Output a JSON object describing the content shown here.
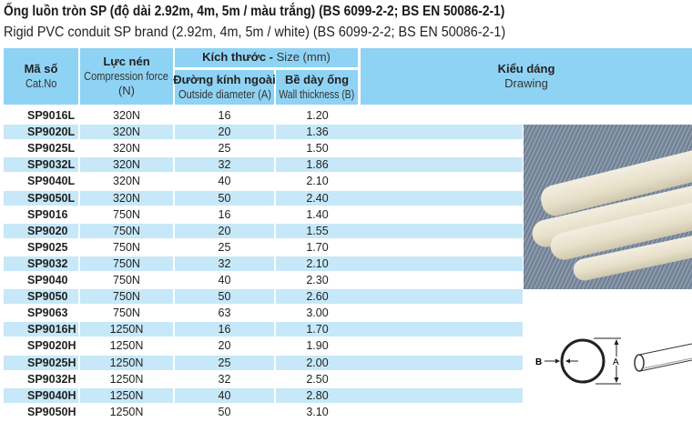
{
  "title_vi": "Ống luồn tròn SP (độ dài 2.92m, 4m, 5m / màu trắng) (BS 6099-2-2; BS EN 50086-2-1)",
  "title_en": "Rigid PVC conduit SP brand (2.92m, 4m, 5m / white) (BS 6099-2-2; BS EN 50086-2-1)",
  "headers": {
    "cat_vi": "Mã số",
    "cat_en": "Cat.No",
    "force_vi": "Lực nén",
    "force_en": "Compression force",
    "force_unit": "(N)",
    "size_vi": "Kích thước -",
    "size_en": "Size (mm)",
    "od_vi": "Đường kính ngoài",
    "od_en": "Outside diameter (A)",
    "wall_vi": "Bề dày ống",
    "wall_en": "Wall thickness (B)",
    "drawing_vi": "Kiểu dáng",
    "drawing_en": "Drawing"
  },
  "drawing_labels": {
    "b": "B",
    "a": "A"
  },
  "colors": {
    "header": "#8fd3f4",
    "stripe": "#c6e8f8"
  },
  "rows": [
    [
      "SP9016L",
      "320N",
      "16",
      "1.20"
    ],
    [
      "SP9020L",
      "320N",
      "20",
      "1.36"
    ],
    [
      "SP9025L",
      "320N",
      "25",
      "1.50"
    ],
    [
      "SP9032L",
      "320N",
      "32",
      "1.86"
    ],
    [
      "SP9040L",
      "320N",
      "40",
      "2.10"
    ],
    [
      "SP9050L",
      "320N",
      "50",
      "2.40"
    ],
    [
      "SP9016",
      "750N",
      "16",
      "1.40"
    ],
    [
      "SP9020",
      "750N",
      "20",
      "1.55"
    ],
    [
      "SP9025",
      "750N",
      "25",
      "1.70"
    ],
    [
      "SP9032",
      "750N",
      "32",
      "2.10"
    ],
    [
      "SP9040",
      "750N",
      "40",
      "2.30"
    ],
    [
      "SP9050",
      "750N",
      "50",
      "2.60"
    ],
    [
      "SP9063",
      "750N",
      "63",
      "3.00"
    ],
    [
      "SP9016H",
      "1250N",
      "16",
      "1.70"
    ],
    [
      "SP9020H",
      "1250N",
      "20",
      "1.90"
    ],
    [
      "SP9025H",
      "1250N",
      "25",
      "2.00"
    ],
    [
      "SP9032H",
      "1250N",
      "32",
      "2.50"
    ],
    [
      "SP9040H",
      "1250N",
      "40",
      "2.80"
    ],
    [
      "SP9050H",
      "1250N",
      "50",
      "3.10"
    ]
  ]
}
